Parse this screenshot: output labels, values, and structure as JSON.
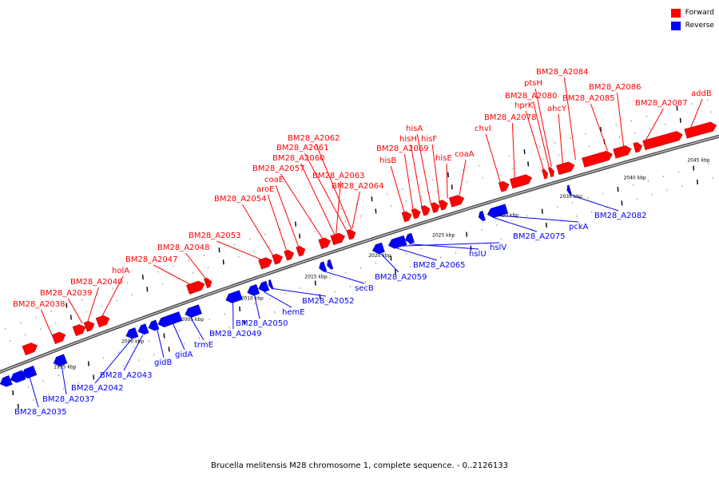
{
  "caption": "Brucella melitensis M28 chromosome 1, complete sequence. - 0..2126133",
  "legend": [
    {
      "label": "Forward",
      "color": "#ff0000"
    },
    {
      "label": "Reverse",
      "color": "#0000ff"
    }
  ],
  "colors": {
    "forward": "#ff0000",
    "reverse": "#0000ff",
    "backbone": "#777777"
  },
  "ticks": [
    {
      "label": "1995 kbp"
    },
    {
      "label": "2000 kbp"
    },
    {
      "label": "2005 kbp"
    },
    {
      "label": "2010 kbp"
    },
    {
      "label": "2015 kbp"
    },
    {
      "label": "2020 kbp"
    },
    {
      "label": "2025 kbp"
    },
    {
      "label": "2030 kbp"
    },
    {
      "label": "2035 kbp"
    },
    {
      "label": "2040 kbp"
    },
    {
      "label": "2045 kbp"
    }
  ],
  "forward_labels": [
    "BM28_A2038",
    "BM28_A2039",
    "BM28_A2040",
    "holA",
    "BM28_A2047",
    "BM28_A2048",
    "BM28_A2053",
    "BM28_A2054",
    "aroE",
    "coaE",
    "BM28_A2057",
    "BM28_A2060",
    "BM28_A2061",
    "BM28_A2062",
    "BM28_A2063",
    "BM28_A2064",
    "hisB",
    "BM28_A2069",
    "hisH",
    "hisA",
    "hisF",
    "hisE",
    "coaA",
    "chvI",
    "BM28_A2078",
    "hprK",
    "BM28_A2080",
    "ptsH",
    "ahcY",
    "BM28_A2084",
    "BM28_A2085",
    "BM28_A2086",
    "BM28_A2087",
    "addB"
  ],
  "reverse_labels": [
    "BM28_A2035",
    "BM28_A2037",
    "BM28_A2042",
    "BM28_A2043",
    "gidB",
    "gidA",
    "trmE",
    "BM28_A2049",
    "BM28_A2050",
    "hemE",
    "BM28_A2052",
    "secB",
    "BM28_A2059",
    "BM28_A2065",
    "hslU",
    "hslV",
    "BM28_A2075",
    "pckA",
    "BM28_A2082"
  ]
}
